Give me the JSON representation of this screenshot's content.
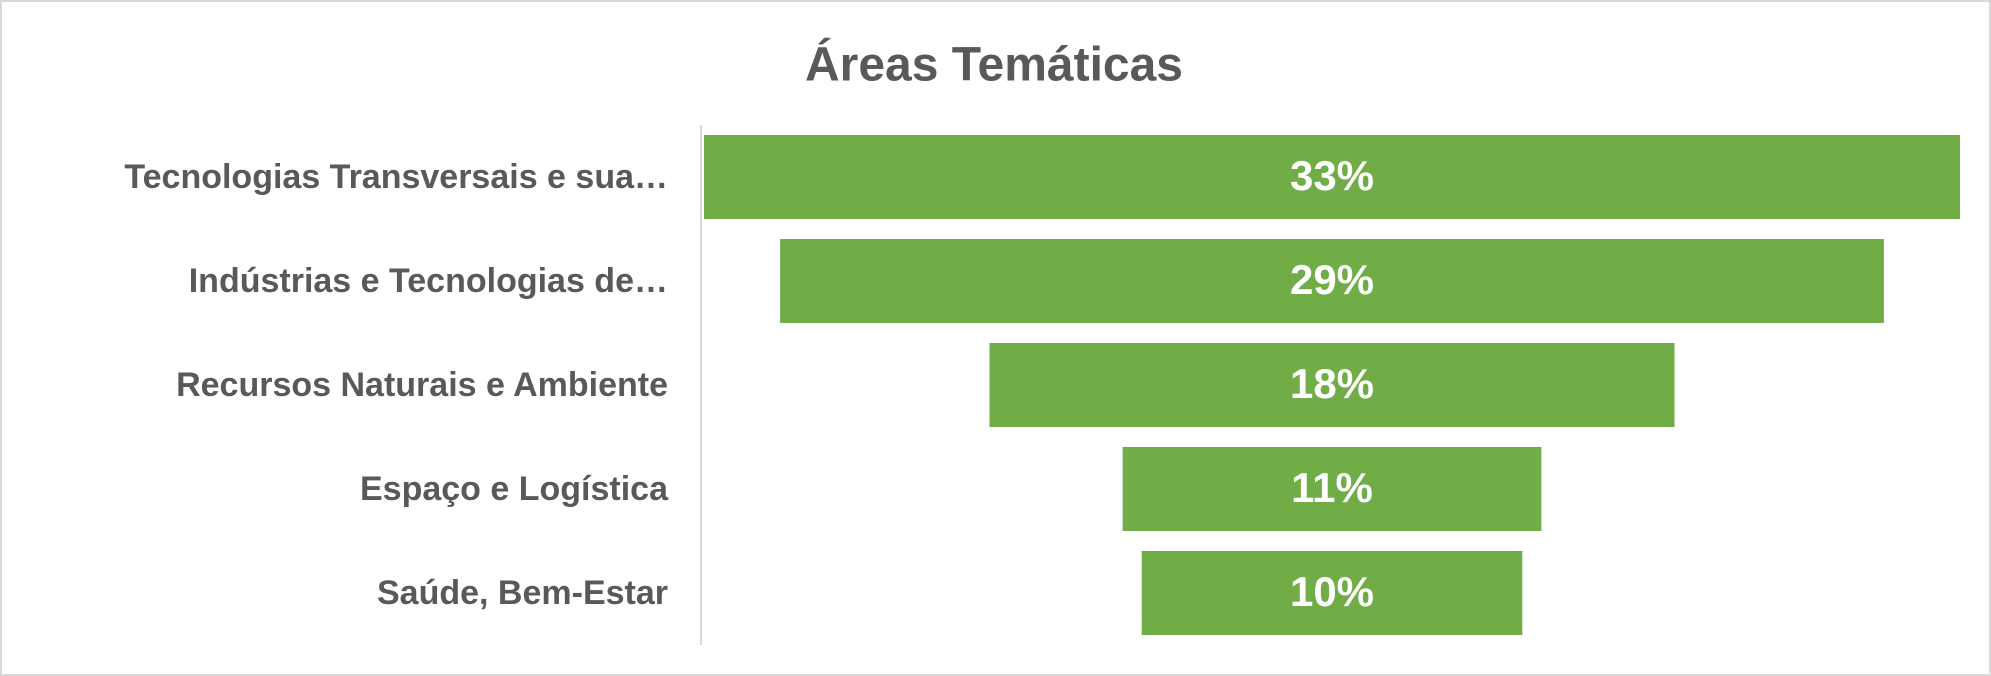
{
  "chart_data": {
    "type": "funnel",
    "title": "Áreas Temáticas",
    "categories": [
      "Tecnologias Transversais e sua…",
      "Indústrias e Tecnologias de…",
      "Recursos Naturais e Ambiente",
      "Espaço e Logística",
      "Saúde, Bem-Estar"
    ],
    "values": [
      33,
      29,
      18,
      11,
      10
    ],
    "value_labels": [
      "33%",
      "29%",
      "18%",
      "11%",
      "10%"
    ],
    "color": "#70ad47"
  }
}
